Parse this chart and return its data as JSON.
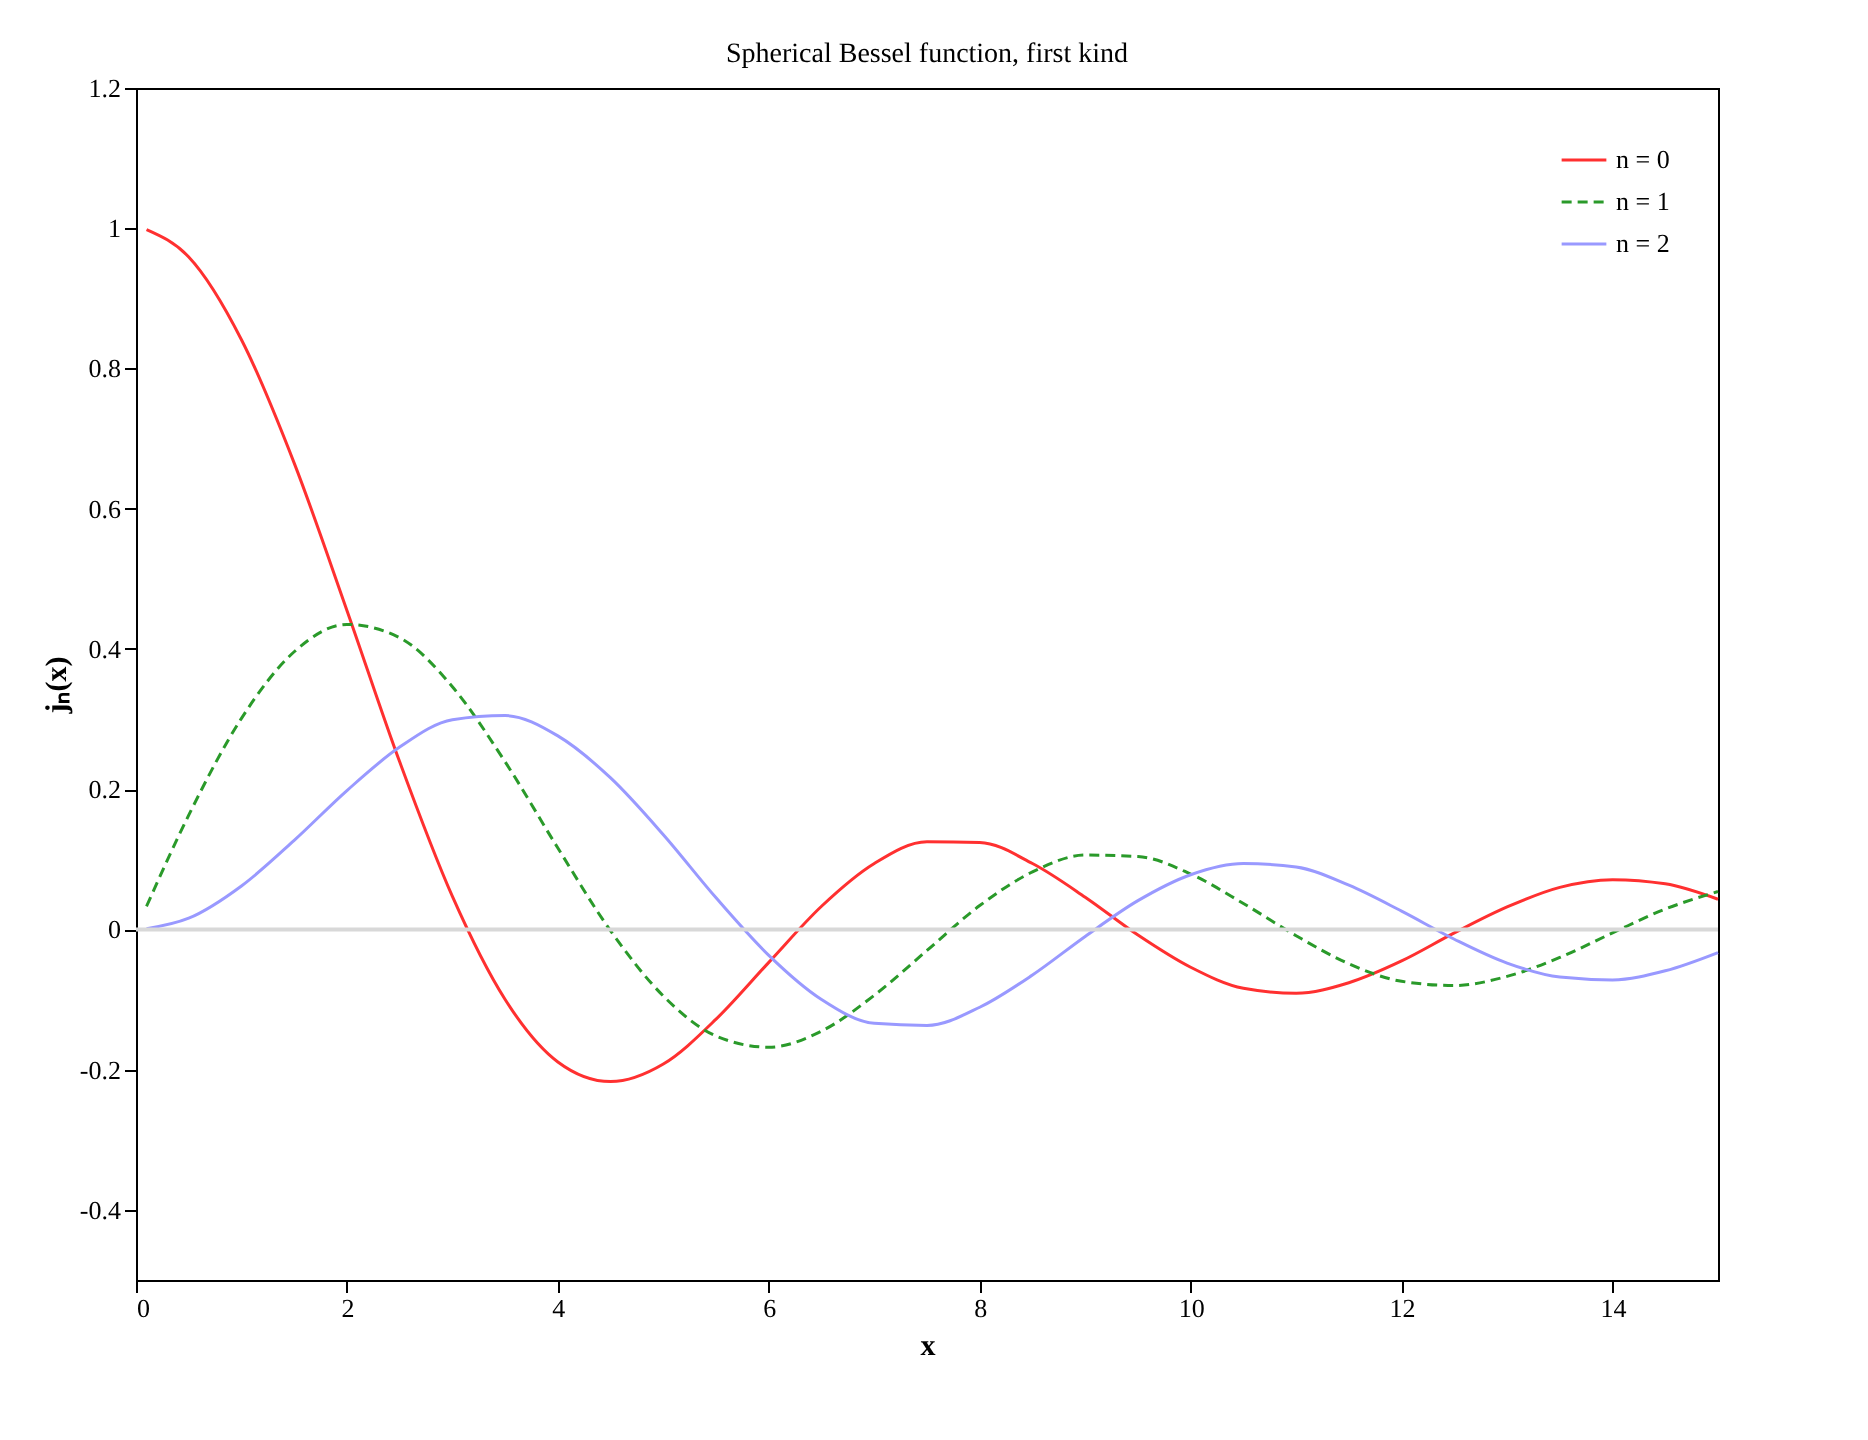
{
  "chart_data": {
    "type": "line",
    "title": "Spherical Bessel function, first kind",
    "xlabel": "x",
    "ylabel": "jₙ(x)",
    "x": [
      0.1,
      0.5,
      1,
      1.5,
      2,
      2.5,
      3,
      3.5,
      4,
      4.5,
      5,
      5.5,
      6,
      6.5,
      7,
      7.5,
      8,
      8.5,
      9,
      9.5,
      10,
      10.5,
      11,
      11.5,
      12,
      12.5,
      13,
      13.5,
      14,
      14.5,
      15
    ],
    "series": [
      {
        "name": "n = 0",
        "color": "#ff3030",
        "line_style": "solid",
        "values": [
          0.998,
          0.959,
          0.841,
          0.665,
          0.455,
          0.239,
          0.047,
          -0.1,
          -0.189,
          -0.217,
          -0.192,
          -0.128,
          -0.047,
          0.033,
          0.094,
          0.125,
          0.124,
          0.094,
          0.046,
          -0.008,
          -0.054,
          -0.084,
          -0.091,
          -0.076,
          -0.045,
          -0.005,
          0.032,
          0.06,
          0.071,
          0.065,
          0.043
        ]
      },
      {
        "name": "n = 1",
        "color": "#2a9a2a",
        "line_style": "dashed",
        "values": [
          0.033,
          0.163,
          0.301,
          0.396,
          0.435,
          0.416,
          0.346,
          0.239,
          0.116,
          -0.002,
          -0.095,
          -0.152,
          -0.168,
          -0.145,
          -0.094,
          -0.03,
          0.034,
          0.082,
          0.106,
          0.104,
          0.079,
          0.037,
          -0.009,
          -0.049,
          -0.074,
          -0.08,
          -0.067,
          -0.04,
          -0.005,
          0.029,
          0.054
        ]
      },
      {
        "name": "n = 2",
        "color": "#9999ff",
        "line_style": "solid",
        "values": [
          0.001,
          0.016,
          0.062,
          0.127,
          0.198,
          0.26,
          0.299,
          0.305,
          0.276,
          0.216,
          0.135,
          0.045,
          -0.037,
          -0.1,
          -0.134,
          -0.137,
          -0.111,
          -0.065,
          -0.01,
          0.041,
          0.078,
          0.094,
          0.089,
          0.063,
          0.026,
          -0.014,
          -0.048,
          -0.068,
          -0.072,
          -0.059,
          -0.033
        ]
      }
    ],
    "xlim": [
      0,
      15
    ],
    "xticks": [
      0,
      2,
      4,
      6,
      8,
      10,
      12,
      14
    ],
    "ylim": [
      -0.5,
      1.2
    ],
    "yticks": [
      -0.4,
      -0.2,
      0,
      0.2,
      0.4,
      0.6,
      0.8,
      1,
      1.2
    ],
    "ref_lines": [
      {
        "axis": "y",
        "value": 0,
        "label": null,
        "color": "#d8d8d8"
      }
    ],
    "legend": "top right"
  }
}
